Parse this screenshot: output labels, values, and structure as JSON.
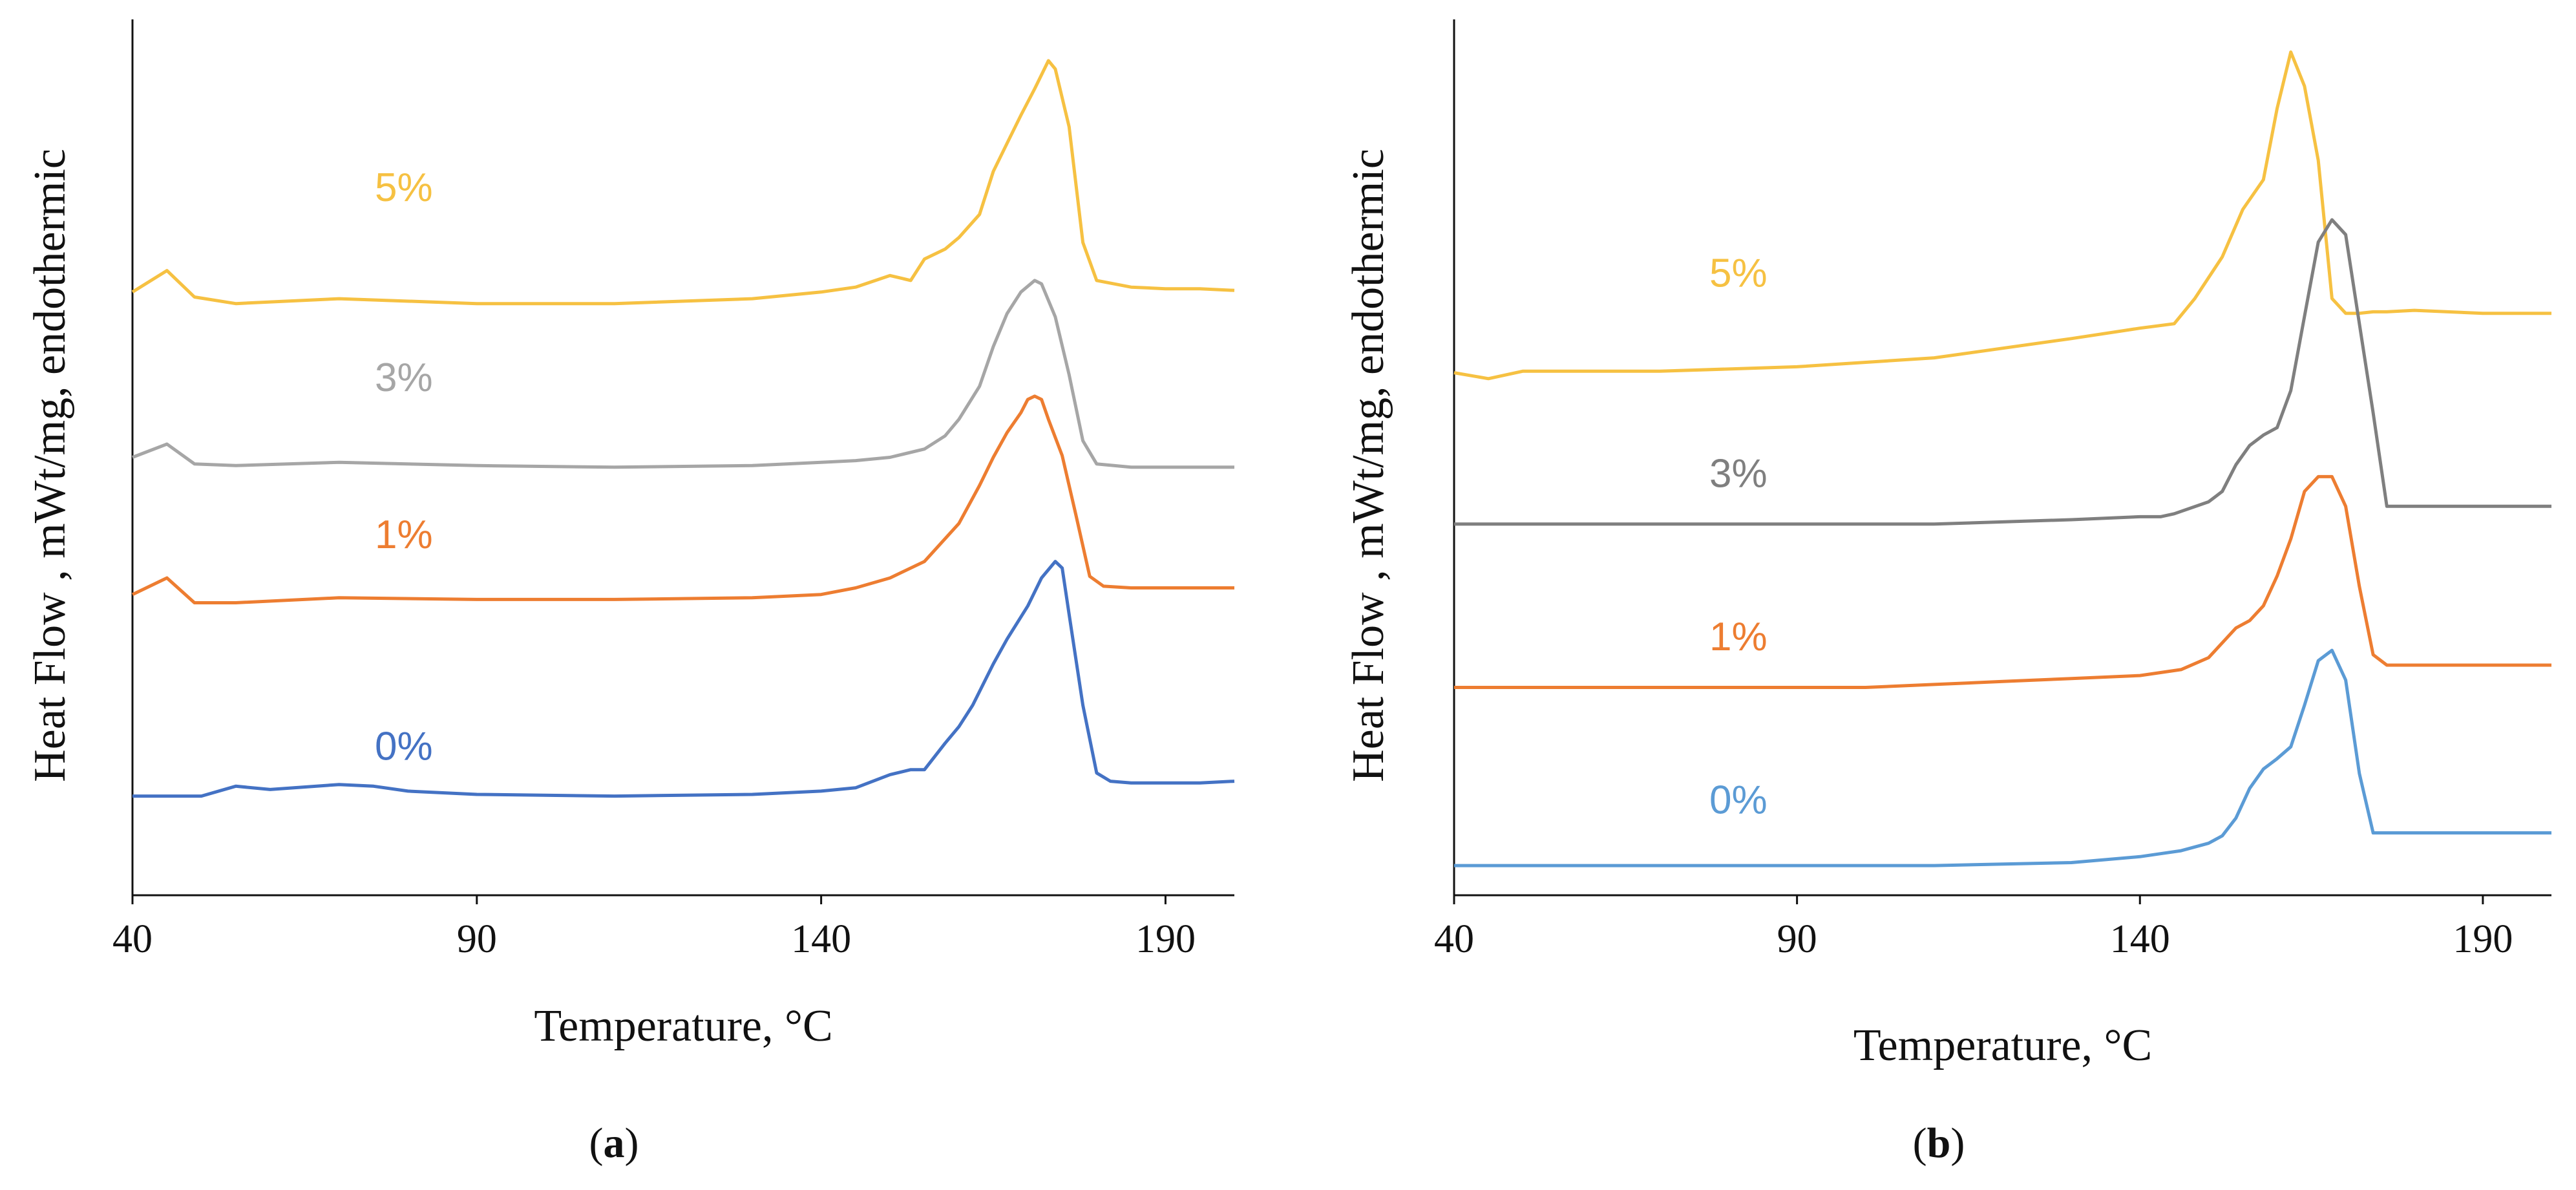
{
  "chart_data": [
    {
      "type": "line",
      "caption": "(a)",
      "xlabel": "Temperature, °C",
      "ylabel": "Heat Flow , mWt/mg, endothermic",
      "xlim": [
        40,
        200
      ],
      "xticks": [
        "40",
        "90",
        "140",
        "190"
      ],
      "y_tick_labels": false,
      "grid": false,
      "series": [
        {
          "name": "5%",
          "color": "#F6C142",
          "x": [
            40,
            45,
            49,
            55,
            70,
            90,
            110,
            130,
            140,
            145,
            150,
            153,
            155,
            158,
            160,
            163,
            165,
            167,
            169,
            171,
            173,
            174,
            176,
            178,
            180,
            185,
            190,
            195,
            200
          ],
          "y": [
            3.05,
            3.18,
            3.02,
            2.98,
            3.01,
            2.98,
            2.98,
            3.01,
            3.05,
            3.08,
            3.15,
            3.12,
            3.25,
            3.31,
            3.38,
            3.52,
            3.78,
            3.95,
            4.12,
            4.28,
            4.45,
            4.4,
            4.05,
            3.35,
            3.12,
            3.08,
            3.07,
            3.07,
            3.06
          ]
        },
        {
          "name": "3%",
          "color": "#A6A6A6",
          "x": [
            40,
            45,
            49,
            55,
            70,
            90,
            110,
            130,
            140,
            145,
            150,
            155,
            158,
            160,
            163,
            165,
            167,
            169,
            171,
            172,
            174,
            176,
            178,
            180,
            185,
            190,
            195,
            200
          ],
          "y": [
            2.05,
            2.13,
            2.01,
            2.0,
            2.02,
            2.0,
            1.99,
            2.0,
            2.02,
            2.03,
            2.05,
            2.1,
            2.18,
            2.28,
            2.48,
            2.72,
            2.92,
            3.05,
            3.12,
            3.1,
            2.9,
            2.55,
            2.15,
            2.01,
            1.99,
            1.99,
            1.99,
            1.99
          ]
        },
        {
          "name": "1%",
          "color": "#ED7D31",
          "x": [
            40,
            45,
            49,
            55,
            70,
            90,
            110,
            130,
            140,
            145,
            150,
            155,
            160,
            163,
            165,
            167,
            169,
            170,
            171,
            172,
            173,
            175,
            177,
            179,
            181,
            185,
            190,
            195,
            200
          ],
          "y": [
            1.22,
            1.32,
            1.17,
            1.17,
            1.2,
            1.19,
            1.19,
            1.2,
            1.22,
            1.26,
            1.32,
            1.42,
            1.65,
            1.88,
            2.05,
            2.2,
            2.32,
            2.4,
            2.42,
            2.4,
            2.28,
            2.06,
            1.7,
            1.33,
            1.27,
            1.26,
            1.26,
            1.26,
            1.26
          ]
        },
        {
          "name": "0%",
          "color": "#4472C4",
          "x": [
            40,
            50,
            55,
            60,
            70,
            75,
            80,
            90,
            110,
            130,
            140,
            145,
            150,
            153,
            155,
            158,
            160,
            162,
            165,
            167,
            170,
            172,
            174,
            175,
            176,
            178,
            180,
            182,
            185,
            190,
            195,
            200
          ],
          "y": [
            0.0,
            0.0,
            0.06,
            0.04,
            0.07,
            0.06,
            0.03,
            0.01,
            0.0,
            0.01,
            0.03,
            0.05,
            0.13,
            0.16,
            0.16,
            0.32,
            0.42,
            0.55,
            0.8,
            0.95,
            1.15,
            1.32,
            1.42,
            1.38,
            1.1,
            0.55,
            0.14,
            0.09,
            0.08,
            0.08,
            0.08,
            0.09
          ]
        }
      ]
    },
    {
      "type": "line",
      "caption": "(b)",
      "xlabel": "Temperature, °C",
      "ylabel": "Heat Flow , mWt/mg, endothermic",
      "xlim": [
        40,
        200
      ],
      "xticks": [
        "40",
        "90",
        "140",
        "190"
      ],
      "y_tick_labels": false,
      "grid": false,
      "series": [
        {
          "name": "5%",
          "color": "#F6C142",
          "x": [
            40,
            45,
            50,
            55,
            70,
            90,
            110,
            130,
            140,
            145,
            148,
            152,
            155,
            158,
            160,
            162,
            164,
            166,
            168,
            170,
            172,
            174,
            176,
            180,
            190,
            200
          ],
          "y": [
            3.32,
            3.28,
            3.33,
            3.33,
            3.33,
            3.36,
            3.42,
            3.55,
            3.62,
            3.65,
            3.82,
            4.1,
            4.42,
            4.62,
            5.1,
            5.48,
            5.25,
            4.75,
            3.82,
            3.72,
            3.72,
            3.73,
            3.73,
            3.74,
            3.72,
            3.72
          ]
        },
        {
          "name": "3%",
          "color": "#7F7F7F",
          "x": [
            40,
            50,
            60,
            70,
            80,
            90,
            110,
            130,
            140,
            143,
            145,
            150,
            152,
            154,
            156,
            158,
            160,
            162,
            164,
            166,
            168,
            170,
            172,
            174,
            176,
            180,
            190,
            200
          ],
          "y": [
            2.3,
            2.3,
            2.3,
            2.3,
            2.3,
            2.3,
            2.3,
            2.33,
            2.35,
            2.35,
            2.37,
            2.45,
            2.52,
            2.7,
            2.83,
            2.9,
            2.95,
            3.2,
            3.7,
            4.2,
            4.35,
            4.25,
            3.65,
            3.05,
            2.42,
            2.42,
            2.42,
            2.42
          ]
        },
        {
          "name": "1%",
          "color": "#ED7D31",
          "x": [
            40,
            55,
            70,
            80,
            90,
            100,
            110,
            120,
            130,
            140,
            143,
            146,
            150,
            152,
            154,
            156,
            158,
            160,
            162,
            164,
            166,
            168,
            170,
            172,
            174,
            176,
            180,
            190,
            200
          ],
          "y": [
            1.2,
            1.2,
            1.2,
            1.2,
            1.2,
            1.2,
            1.22,
            1.24,
            1.26,
            1.28,
            1.3,
            1.32,
            1.4,
            1.5,
            1.6,
            1.65,
            1.75,
            1.95,
            2.2,
            2.52,
            2.62,
            2.62,
            2.42,
            1.88,
            1.42,
            1.35,
            1.35,
            1.35,
            1.35
          ]
        },
        {
          "name": "0%",
          "color": "#5B9BD5",
          "x": [
            40,
            60,
            70,
            90,
            110,
            130,
            140,
            143,
            146,
            150,
            152,
            154,
            156,
            158,
            160,
            162,
            164,
            166,
            168,
            170,
            172,
            174,
            176,
            180,
            190,
            200
          ],
          "y": [
            0.0,
            0.0,
            0.0,
            0.0,
            0.0,
            0.02,
            0.06,
            0.08,
            0.1,
            0.15,
            0.2,
            0.32,
            0.52,
            0.65,
            0.72,
            0.8,
            1.08,
            1.38,
            1.45,
            1.25,
            0.62,
            0.22,
            0.22,
            0.22,
            0.22,
            0.22
          ]
        }
      ]
    }
  ]
}
